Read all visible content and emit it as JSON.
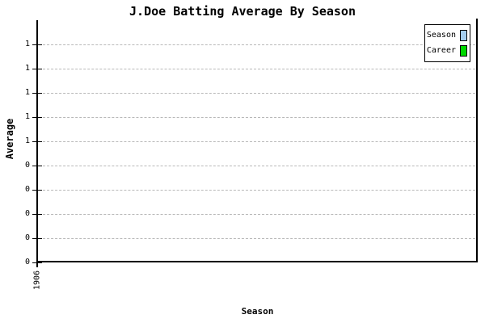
{
  "title": "J.Doe Batting Average By Season",
  "axes": {
    "y_label": "Average",
    "x_label": "Season",
    "y_ticks": [
      "1",
      "1",
      "1",
      "1",
      "1",
      "0",
      "0",
      "0",
      "0",
      "0"
    ],
    "x_ticks": [
      "1906"
    ]
  },
  "legend": {
    "items": [
      {
        "label": "Season",
        "color": "#A4CDEE"
      },
      {
        "label": "Career",
        "color": "#00D800"
      }
    ]
  },
  "colors": {
    "background": "#ffffff",
    "axis": "#000000",
    "gridline": "#b8b8b8",
    "season_swatch": "#A4CDEE",
    "career_swatch": "#00D800"
  },
  "chart_data": {
    "type": "line",
    "title": "J.Doe Batting Average By Season",
    "xlabel": "Season",
    "ylabel": "Average",
    "x_tick_labels": [
      "1906"
    ],
    "y_tick_labels": [
      "1",
      "1",
      "1",
      "1",
      "1",
      "0",
      "0",
      "0",
      "0",
      "0"
    ],
    "y_axis_implied_range": [
      0,
      1
    ],
    "grid": "horizontal-dashed",
    "legend_position": "top-right",
    "series": [
      {
        "name": "Season",
        "color": "#A4CDEE",
        "values": []
      },
      {
        "name": "Career",
        "color": "#00D800",
        "values": []
      }
    ],
    "plot_is_empty": true
  }
}
